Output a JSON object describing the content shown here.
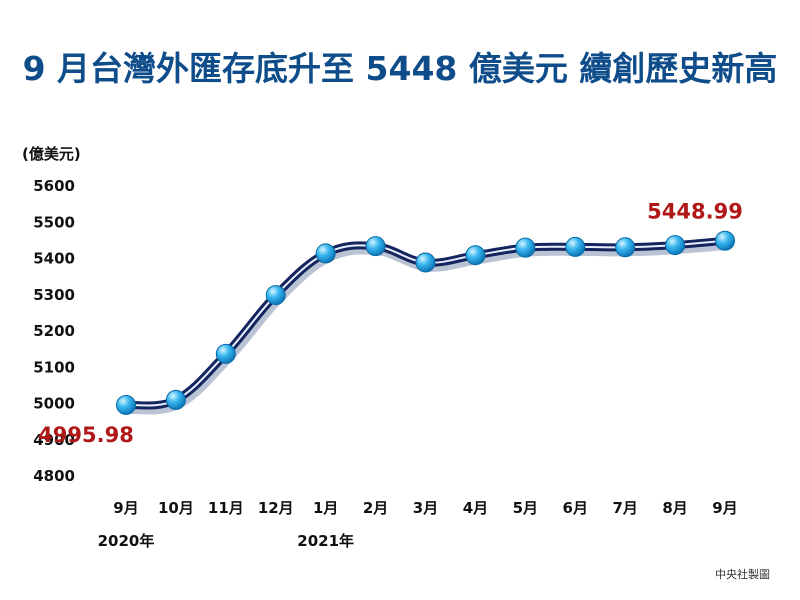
{
  "chart_data": {
    "type": "line",
    "title": "9 月台灣外匯存底升至 5448 億美元 續創歷史新高",
    "unit_label": "(億美元)",
    "categories": [
      "9月",
      "10月",
      "11月",
      "12月",
      "1月",
      "2月",
      "3月",
      "4月",
      "5月",
      "6月",
      "7月",
      "8月",
      "9月"
    ],
    "year_labels": [
      {
        "label": "2020年",
        "category_index": 0
      },
      {
        "label": "2021年",
        "category_index": 4
      }
    ],
    "series": [
      {
        "values": [
          4995.98,
          5010,
          5137,
          5299,
          5414,
          5434,
          5389,
          5409,
          5430,
          5432,
          5431,
          5437,
          5448.99
        ]
      }
    ],
    "ylim": [
      4800,
      5600
    ],
    "yticks": [
      4800,
      4900,
      5000,
      5100,
      5200,
      5300,
      5400,
      5500,
      5600
    ],
    "grid": false,
    "annotations": [
      {
        "text": "4995.98",
        "point_index": 0
      },
      {
        "text": "5448.99",
        "point_index": 12
      }
    ],
    "colors": {
      "line": "#13245e",
      "marker": "#3ab8f0",
      "title": "#0f4c8a",
      "annotation": "#b01818"
    }
  },
  "footer": {
    "source": "中央社製圖"
  }
}
